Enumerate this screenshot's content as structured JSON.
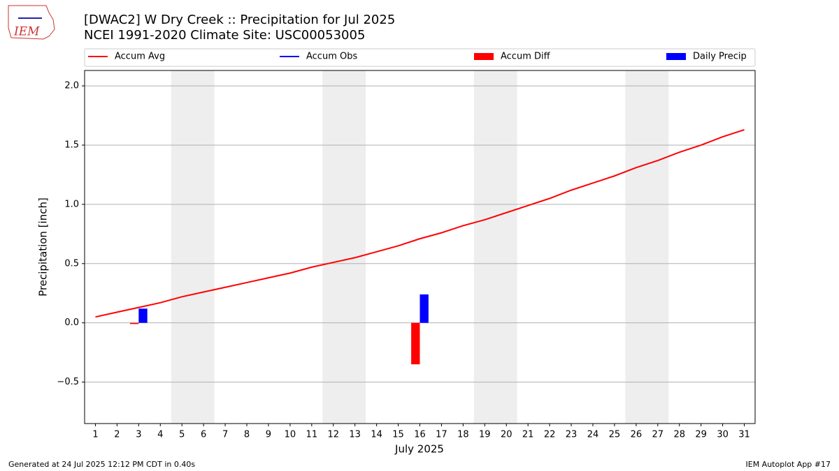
{
  "logo_text": "IEM",
  "chart_data": {
    "type": "combo",
    "title": "[DWAC2] W Dry Creek :: Precipitation for Jul 2025",
    "subtitle": "NCEI 1991-2020 Climate Site: USC00053005",
    "x_label": "July 2025",
    "y_label": "Precipitation [inch]",
    "footer_left": "Generated at 24 Jul 2025 12:12 PM CDT in 0.40s",
    "footer_right": "IEM Autoplot App #17",
    "x": [
      1,
      2,
      3,
      4,
      5,
      6,
      7,
      8,
      9,
      10,
      11,
      12,
      13,
      14,
      15,
      16,
      17,
      18,
      19,
      20,
      21,
      22,
      23,
      24,
      25,
      26,
      27,
      28,
      29,
      30,
      31
    ],
    "xlim": [
      0.5,
      31.5
    ],
    "xticks": [
      1,
      2,
      3,
      4,
      5,
      6,
      7,
      8,
      9,
      10,
      11,
      12,
      13,
      14,
      15,
      16,
      17,
      18,
      19,
      20,
      21,
      22,
      23,
      24,
      25,
      26,
      27,
      28,
      29,
      30,
      31
    ],
    "ylim": [
      -0.85,
      2.13
    ],
    "yticks": [
      {
        "value": -0.5,
        "label": "−0.5"
      },
      {
        "value": 0,
        "label": "0.0"
      },
      {
        "value": 0.5,
        "label": "0.5"
      },
      {
        "value": 1,
        "label": "1.0"
      },
      {
        "value": 1.5,
        "label": "1.5"
      },
      {
        "value": 2,
        "label": "2.0"
      }
    ],
    "grid": true,
    "weekend_bands": [
      [
        4.5,
        6.5
      ],
      [
        11.5,
        13.5
      ],
      [
        18.5,
        20.5
      ],
      [
        25.5,
        27.5
      ]
    ],
    "weekend_color": "#eeeeee",
    "series": [
      {
        "name": "Accum Avg",
        "type": "line",
        "color": "#ff0000",
        "values": [
          0.05,
          0.09,
          0.13,
          0.17,
          0.22,
          0.26,
          0.3,
          0.34,
          0.38,
          0.42,
          0.47,
          0.51,
          0.55,
          0.6,
          0.65,
          0.71,
          0.76,
          0.82,
          0.87,
          0.93,
          0.99,
          1.05,
          1.12,
          1.18,
          1.24,
          1.31,
          1.37,
          1.44,
          1.5,
          1.57,
          1.63
        ]
      },
      {
        "name": "Accum Obs",
        "type": "line",
        "color": "#0000ff",
        "values": [
          null,
          null,
          null,
          null,
          null,
          null,
          null,
          null,
          null,
          null,
          null,
          null,
          null,
          null,
          null,
          null,
          null,
          null,
          null,
          null,
          null,
          null,
          null,
          null,
          null,
          null,
          null,
          null,
          null,
          null,
          null
        ]
      },
      {
        "name": "Accum Diff",
        "type": "bar",
        "offset": -0.2,
        "color": "#ff0000",
        "values": [
          null,
          null,
          -0.01,
          null,
          null,
          null,
          null,
          null,
          null,
          null,
          null,
          null,
          null,
          null,
          null,
          -0.35,
          null,
          null,
          null,
          null,
          null,
          null,
          null,
          null,
          null,
          null,
          null,
          null,
          null,
          null,
          null
        ]
      },
      {
        "name": "Daily Precip",
        "type": "bar",
        "offset": 0.2,
        "color": "#0000ff",
        "values": [
          null,
          null,
          0.12,
          null,
          null,
          null,
          null,
          null,
          null,
          null,
          null,
          null,
          null,
          null,
          null,
          0.24,
          null,
          null,
          null,
          null,
          null,
          null,
          null,
          null,
          null,
          null,
          null,
          null,
          null,
          null,
          null
        ]
      }
    ]
  }
}
